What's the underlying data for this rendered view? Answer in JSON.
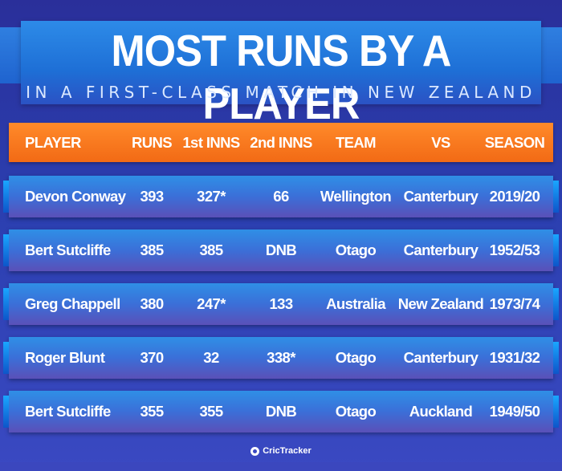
{
  "title": "MOST RUNS BY A PLAYER",
  "subtitle": "IN A FIRST-CLASS MATCH IN NEW ZEALAND",
  "columns": [
    "PLAYER",
    "RUNS",
    "1st INNS",
    "2nd INNS",
    "TEAM",
    "VS",
    "SEASON"
  ],
  "rows": [
    {
      "player": "Devon Conway",
      "runs": "393",
      "inn1": "327*",
      "inn2": "66",
      "team": "Wellington",
      "vs": "Canterbury",
      "season": "2019/20"
    },
    {
      "player": "Bert Sutcliffe",
      "runs": "385",
      "inn1": "385",
      "inn2": "DNB",
      "team": "Otago",
      "vs": "Canterbury",
      "season": "1952/53"
    },
    {
      "player": "Greg Chappell",
      "runs": "380",
      "inn1": "247*",
      "inn2": "133",
      "team": "Australia",
      "vs": "New Zealand",
      "season": "1973/74"
    },
    {
      "player": "Roger Blunt",
      "runs": "370",
      "inn1": "32",
      "inn2": "338*",
      "team": "Otago",
      "vs": "Canterbury",
      "season": "1931/32"
    },
    {
      "player": "Bert Sutcliffe",
      "runs": "355",
      "inn1": "355",
      "inn2": "DNB",
      "team": "Otago",
      "vs": "Auckland",
      "season": "1949/50"
    }
  ],
  "footer": {
    "logo_icon": "crictracker-logo-icon",
    "brand": "CricTracker"
  },
  "colors": {
    "header": "#f26a15",
    "row": "#2f8fe6",
    "background": "#2b3fb0"
  }
}
